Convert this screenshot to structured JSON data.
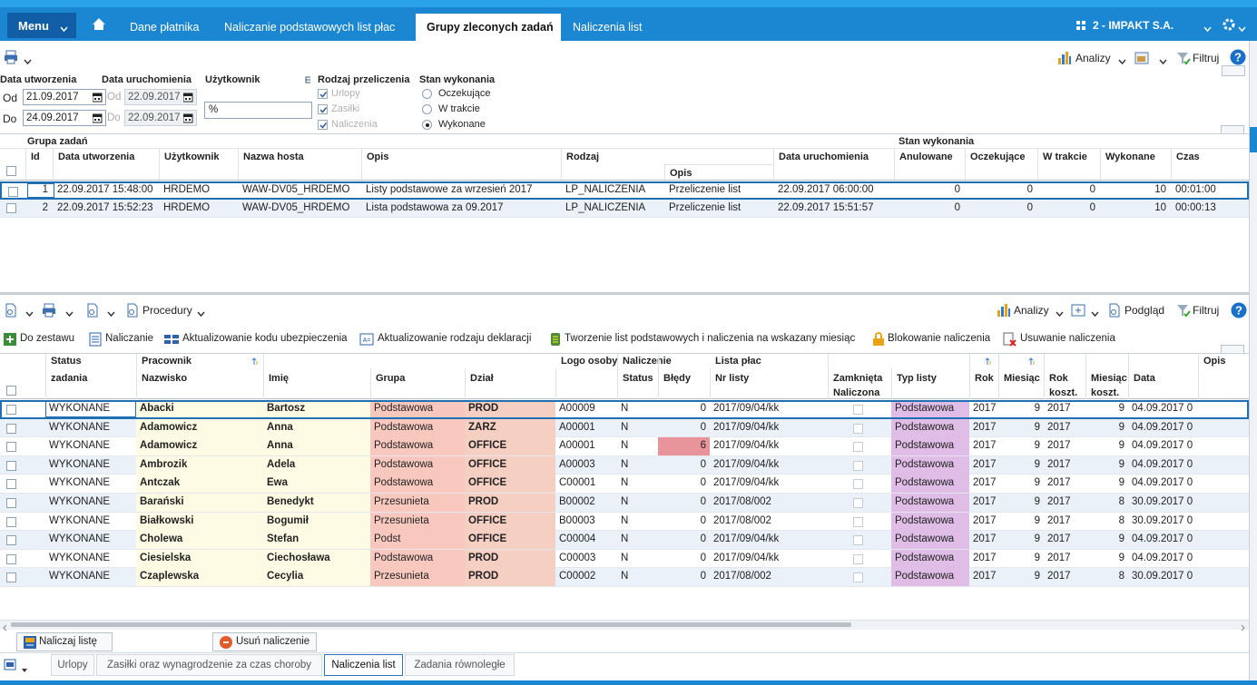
{
  "nav": {
    "menu": "Menu",
    "tabs": [
      "Dane płatnika",
      "Naliczanie podstawowych list płac",
      "Grupy zleconych zadań",
      "Naliczenia list"
    ],
    "company": "2 - IMPAKT S.A."
  },
  "toolbar": {
    "analizy": "Analizy",
    "filtruj": "Filtruj"
  },
  "filters": {
    "date_created": "Data utworzenia",
    "date_run": "Data uruchomienia",
    "user": "Użytkownik",
    "kind": "Rodzaj przeliczenia",
    "state": "Stan wykonania",
    "from": "Od",
    "to": "Do",
    "created_from": "21.09.2017",
    "created_to": "24.09.2017",
    "run_from": "22.09.2017",
    "run_to": "22.09.2017",
    "user_value": "%",
    "kinds": [
      "Urlopy",
      "Zasiłki",
      "Naliczenia"
    ],
    "states": [
      "Oczekujące",
      "W trakcie",
      "Wykonane"
    ]
  },
  "upper_table": {
    "groups": [
      "Grupa zadań",
      "Stan wykonania"
    ],
    "columns": [
      "Id",
      "Data utworzenia",
      "Użytkownik",
      "Nazwa hosta",
      "Opis",
      "Rodzaj",
      "Opis",
      "Data uruchomienia",
      "Anulowane",
      "Oczekujące",
      "W trakcie",
      "Wykonane",
      "Czas"
    ],
    "rows": [
      [
        "1",
        "22.09.2017 15:48:00",
        "HRDEMO",
        "WAW-DV05_HRDEMO",
        "Listy podstawowe za wrzesień 2017",
        "LP_NALICZENIA",
        "Przeliczenie list",
        "22.09.2017 06:00:00",
        "0",
        "0",
        "0",
        "10",
        "00:01:00"
      ],
      [
        "2",
        "22.09.2017 15:52:23",
        "HRDEMO",
        "WAW-DV05_HRDEMO",
        "Lista podstawowa za 09.2017",
        "LP_NALICZENIA",
        "Przeliczenie list",
        "22.09.2017 15:51:57",
        "0",
        "0",
        "0",
        "10",
        "00:00:13"
      ]
    ]
  },
  "lower_toolbar": {
    "procedury": "Procedury",
    "analizy": "Analizy",
    "podglad": "Podgląd",
    "filtruj": "Filtruj"
  },
  "actions": [
    "Do zestawu",
    "Naliczanie",
    "Aktualizowanie kodu ubezpieczenia",
    "Aktualizowanie rodzaju deklaracji",
    "Tworzenie list podstawowych i naliczenia na wskazany miesiąc",
    "Blokowanie naliczenia",
    "Usuwanie naliczenia"
  ],
  "lower_table": {
    "headers": [
      {
        "top": "Status",
        "bottom": "zadania"
      },
      {
        "top": "Pracownik",
        "bottom": "Nazwisko"
      },
      {
        "bottom": "Imię"
      },
      {
        "bottom": "Grupa"
      },
      {
        "bottom": "Dział"
      },
      {
        "top": "Logo osoby"
      },
      {
        "top": "Naliczenie",
        "bottom": "Status"
      },
      {
        "bottom": "Błędy"
      },
      {
        "top": "Lista płac",
        "bottom": "Nr listy"
      },
      {
        "bottom": "Zamknięta Naliczona"
      },
      {
        "bottom": "Typ listy"
      },
      {
        "bottom": "Rok"
      },
      {
        "bottom": "Miesiąc"
      },
      {
        "bottom": "Rok koszt."
      },
      {
        "bottom": "Miesiąc koszt."
      },
      {
        "bottom": "Data"
      },
      {
        "top": "Opis"
      }
    ],
    "rows": [
      [
        "WYKONANE",
        "Abacki",
        "Bartosz",
        "Podstawowa",
        "PROD",
        "A00009",
        "N",
        "0",
        "2017/09/04/kk",
        "Podstawowa",
        "2017",
        "9",
        "2017",
        "9",
        "04.09.2017 0"
      ],
      [
        "WYKONANE",
        "Adamowicz",
        "Anna",
        "Podstawowa",
        "ZARZ",
        "A00001",
        "N",
        "0",
        "2017/09/04/kk",
        "Podstawowa",
        "2017",
        "9",
        "2017",
        "9",
        "04.09.2017 0"
      ],
      [
        "WYKONANE",
        "Adamowicz",
        "Anna",
        "Podstawowa",
        "OFFICE",
        "A00001",
        "N",
        "6",
        "2017/09/04/kk",
        "Podstawowa",
        "2017",
        "9",
        "2017",
        "9",
        "04.09.2017 0"
      ],
      [
        "WYKONANE",
        "Ambrozik",
        "Adela",
        "Podstawowa",
        "OFFICE",
        "A00003",
        "N",
        "0",
        "2017/09/04/kk",
        "Podstawowa",
        "2017",
        "9",
        "2017",
        "9",
        "04.09.2017 0"
      ],
      [
        "WYKONANE",
        "Antczak",
        "Ewa",
        "Podstawowa",
        "OFFICE",
        "C00001",
        "N",
        "0",
        "2017/09/04/kk",
        "Podstawowa",
        "2017",
        "9",
        "2017",
        "9",
        "04.09.2017 0"
      ],
      [
        "WYKONANE",
        "Barański",
        "Benedykt",
        "Przesunieta",
        "PROD",
        "B00002",
        "N",
        "0",
        "2017/08/002",
        "Podstawowa",
        "2017",
        "9",
        "2017",
        "8",
        "30.09.2017 0"
      ],
      [
        "WYKONANE",
        "Białkowski",
        "Bogumił",
        "Przesunieta",
        "OFFICE",
        "B00003",
        "N",
        "0",
        "2017/08/002",
        "Podstawowa",
        "2017",
        "9",
        "2017",
        "8",
        "30.09.2017 0"
      ],
      [
        "WYKONANE",
        "Cholewa",
        "Stefan",
        "Podst",
        "OFFICE",
        "C00004",
        "N",
        "0",
        "2017/09/04/kk",
        "Podstawowa",
        "2017",
        "9",
        "2017",
        "9",
        "04.09.2017 0"
      ],
      [
        "WYKONANE",
        "Ciesielska",
        "Ciechosława",
        "Podstawowa",
        "PROD",
        "C00003",
        "N",
        "0",
        "2017/09/04/kk",
        "Podstawowa",
        "2017",
        "9",
        "2017",
        "9",
        "04.09.2017 0"
      ],
      [
        "WYKONANE",
        "Czaplewska",
        "Cecylia",
        "Przesunieta",
        "PROD",
        "C00002",
        "N",
        "0",
        "2017/08/002",
        "Podstawowa",
        "2017",
        "9",
        "2017",
        "8",
        "30.09.2017 0"
      ]
    ]
  },
  "buttons": [
    "Naliczaj listę",
    "Usuń naliczenie"
  ],
  "bottom_tabs": [
    "Urlopy",
    "Zasiłki oraz wynagrodzenie za czas choroby",
    "Naliczenia list",
    "Zadania równoległe"
  ]
}
